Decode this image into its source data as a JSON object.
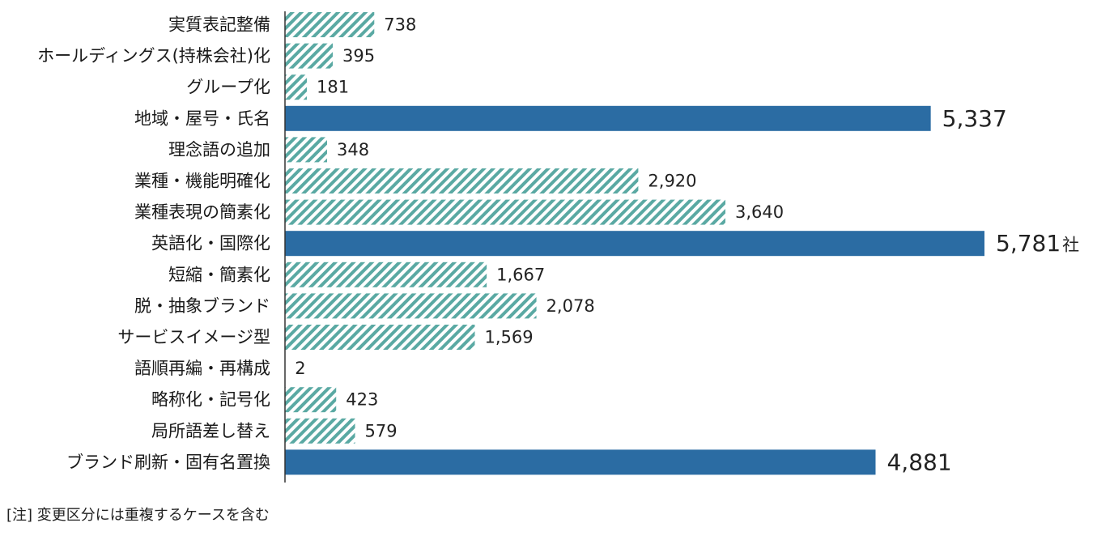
{
  "chart_data": {
    "type": "bar",
    "orientation": "horizontal",
    "categories": [
      "実質表記整備",
      "ホールディングス(持株会社)化",
      "グループ化",
      "地域・屋号・氏名",
      "理念語の追加",
      "業種・機能明確化",
      "業種表現の簡素化",
      "英語化・国際化",
      "短縮・簡素化",
      "脱・抽象ブランド",
      "サービスイメージ型",
      "語順再編・再構成",
      "略称化・記号化",
      "局所語差し替え",
      "ブランド刷新・固有名置換"
    ],
    "values": [
      738,
      395,
      181,
      5337,
      348,
      2920,
      3640,
      5781,
      1667,
      2078,
      1569,
      2,
      423,
      579,
      4881
    ],
    "value_labels": [
      "738",
      "395",
      "181",
      "5,337",
      "348",
      "2,920",
      "3,640",
      "5,781",
      "1,667",
      "2,078",
      "1,569",
      "2",
      "423",
      "579",
      "4,881"
    ],
    "highlighted": [
      false,
      false,
      false,
      true,
      false,
      false,
      false,
      true,
      false,
      false,
      false,
      false,
      false,
      false,
      true
    ],
    "unit_suffix": "社",
    "unit_suffix_index": 7,
    "xlim": [
      0,
      6000
    ],
    "grid": false,
    "legend": "none",
    "colors": {
      "highlight": "#2b6ca3",
      "hatch_stripe": "#5aa9a3",
      "hatch_bg": "#ffffff",
      "axis": "#333333"
    }
  },
  "note": "[注] 変更区分には重複するケースを含む"
}
